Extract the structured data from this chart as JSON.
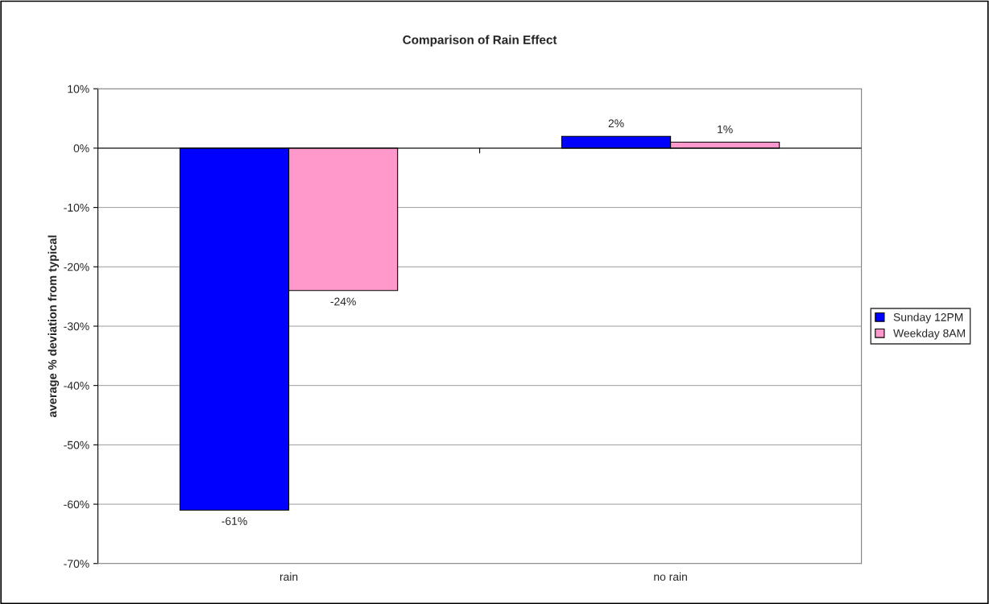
{
  "chart_data": {
    "type": "bar",
    "title": "Comparison of Rain Effect",
    "ylabel": "average % deviation from typical",
    "categories": [
      "rain",
      "no rain"
    ],
    "series": [
      {
        "name": "Sunday 12PM",
        "color": "#0000ff",
        "values": [
          -61,
          2
        ],
        "value_labels": [
          "-61%",
          "2%"
        ]
      },
      {
        "name": "Weekday 8AM",
        "color": "#ff99cc",
        "values": [
          -24,
          1
        ],
        "value_labels": [
          "-24%",
          "1%"
        ]
      }
    ],
    "ylim": [
      -70,
      10
    ],
    "yticks": [
      {
        "value": 10,
        "label": "10%"
      },
      {
        "value": 0,
        "label": "0%"
      },
      {
        "value": -10,
        "label": "-10%"
      },
      {
        "value": -20,
        "label": "-20%"
      },
      {
        "value": -30,
        "label": "-30%"
      },
      {
        "value": -40,
        "label": "-40%"
      },
      {
        "value": -50,
        "label": "-50%"
      },
      {
        "value": -60,
        "label": "-60%"
      },
      {
        "value": -70,
        "label": "-70%"
      }
    ],
    "grid": "y",
    "legend": "right"
  }
}
